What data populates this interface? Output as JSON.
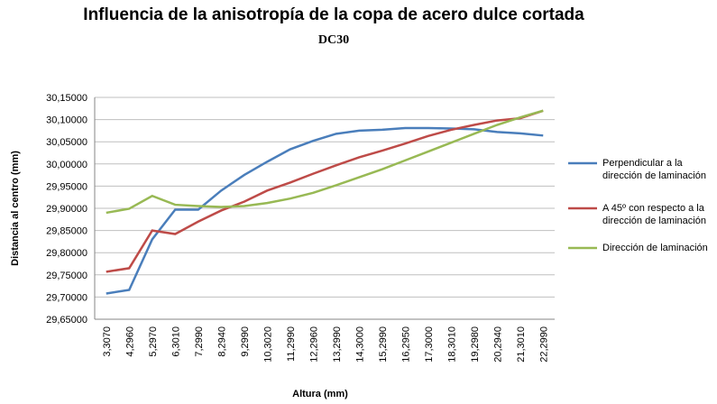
{
  "chart_data": {
    "type": "line",
    "title": "Influencia de la anisotropía de la copa de acero dulce cortada",
    "subtitle": "DC30",
    "x_label": "Altura (mm)",
    "y_label": "Distancia al centro (mm)",
    "categories": [
      "3,3070",
      "4,2960",
      "5,2970",
      "6,3010",
      "7,2990",
      "8,2940",
      "9,2990",
      "10,3020",
      "11,2990",
      "12,2960",
      "13,2990",
      "14,3000",
      "15,2990",
      "16,2950",
      "17,3000",
      "18,3010",
      "19,2980",
      "20,2940",
      "21,3010",
      "22,2990"
    ],
    "series": [
      {
        "name": "Perpendicular a la dirección de laminación",
        "color": "#4a7ebb",
        "values": [
          29.708,
          29.716,
          29.83,
          29.897,
          29.897,
          29.94,
          29.975,
          30.005,
          30.033,
          30.052,
          30.068,
          30.075,
          30.077,
          30.081,
          30.081,
          30.08,
          30.078,
          30.072,
          30.069,
          30.064
        ]
      },
      {
        "name": "A 45º con respecto a la dirección de laminación",
        "color": "#be4b48",
        "values": [
          29.757,
          29.765,
          29.85,
          29.842,
          29.87,
          29.895,
          29.915,
          29.94,
          29.958,
          29.978,
          29.997,
          30.015,
          30.03,
          30.046,
          30.063,
          30.077,
          30.088,
          30.098,
          30.103,
          30.12
        ]
      },
      {
        "name": "Dirección de laminación",
        "color": "#98b954",
        "values": [
          29.89,
          29.899,
          29.928,
          29.908,
          29.905,
          29.903,
          29.905,
          29.912,
          29.922,
          29.935,
          29.952,
          29.97,
          29.988,
          30.008,
          30.028,
          30.048,
          30.068,
          30.088,
          30.105,
          30.12
        ]
      }
    ],
    "ylim": [
      29.65,
      30.15
    ],
    "yticks": [
      {
        "value": 29.65,
        "label": "29,65000"
      },
      {
        "value": 29.7,
        "label": "29,70000"
      },
      {
        "value": 29.75,
        "label": "29,75000"
      },
      {
        "value": 29.8,
        "label": "29,80000"
      },
      {
        "value": 29.85,
        "label": "29,85000"
      },
      {
        "value": 29.9,
        "label": "29,90000"
      },
      {
        "value": 29.95,
        "label": "29,95000"
      },
      {
        "value": 30.0,
        "label": "30,00000"
      },
      {
        "value": 30.05,
        "label": "30,05000"
      },
      {
        "value": 30.1,
        "label": "30,10000"
      },
      {
        "value": 30.15,
        "label": "30,15000"
      }
    ],
    "grid": true,
    "legend": "right"
  }
}
